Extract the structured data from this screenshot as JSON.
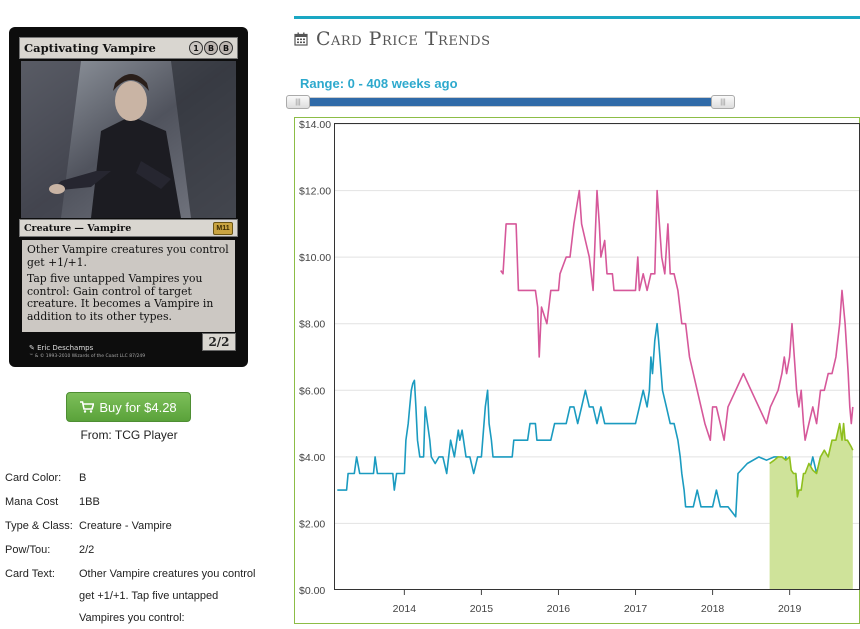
{
  "card": {
    "name": "Captivating Vampire",
    "mana_symbols": [
      "1",
      "B",
      "B"
    ],
    "type_line": "Creature — Vampire",
    "set_symbol": "M11",
    "rules": [
      "Other Vampire creatures you control get +1/+1.",
      "Tap five untapped Vampires you control: Gain control of target creature. It becomes a Vampire in addition to its other types."
    ],
    "pt": "2/2",
    "artist": "Eric Deschamps",
    "copyright": "™ & © 1993-2010 Wizards of the Coast LLC 87/249"
  },
  "buy": {
    "label": "Buy for $4.28",
    "from": "From: TCG Player"
  },
  "details": [
    {
      "label": "Card Color:",
      "value": "B"
    },
    {
      "label": "Mana Cost",
      "value": "1BB"
    },
    {
      "label": "Type & Class:",
      "value": "Creature - Vampire"
    },
    {
      "label": "Pow/Tou:",
      "value": "2/2"
    },
    {
      "label": "Card Text:",
      "value": "Other Vampire creatures you control get +1/+1. Tap five untapped Vampires you control:"
    }
  ],
  "chart_header": {
    "title": "Card Price Trends",
    "range": "Range: 0 - 408 weeks ago"
  },
  "colors": {
    "accent": "#1aa7c3",
    "pink": "#d6589a",
    "blue": "#1b9bc0",
    "green": "#8fbf1e",
    "green_fill": "#cfe39a"
  },
  "chart_data": {
    "type": "line",
    "xlabel": "",
    "ylabel": "",
    "x_ticks": [
      "2014",
      "2015",
      "2016",
      "2017",
      "2018",
      "2019"
    ],
    "y_ticks": [
      "$0.00",
      "$2.00",
      "$4.00",
      "$6.00",
      "$8.00",
      "$10.00",
      "$12.00",
      "$14.00"
    ],
    "xlim": [
      2013.1,
      2019.9
    ],
    "ylim": [
      0,
      14
    ],
    "grid": "horizontal",
    "series": [
      {
        "color": "pink",
        "points": [
          [
            2015.25,
            9.6
          ],
          [
            2015.28,
            9.5
          ],
          [
            2015.32,
            11.0
          ],
          [
            2015.45,
            11.0
          ],
          [
            2015.48,
            9.0
          ],
          [
            2015.7,
            9.0
          ],
          [
            2015.73,
            8.5
          ],
          [
            2015.75,
            7.0
          ],
          [
            2015.78,
            8.5
          ],
          [
            2015.85,
            8.0
          ],
          [
            2015.9,
            9.0
          ],
          [
            2016.0,
            9.0
          ],
          [
            2016.02,
            9.5
          ],
          [
            2016.1,
            10.0
          ],
          [
            2016.15,
            10.0
          ],
          [
            2016.2,
            11.0
          ],
          [
            2016.27,
            12.0
          ],
          [
            2016.3,
            11.0
          ],
          [
            2016.35,
            10.5
          ],
          [
            2016.4,
            10.0
          ],
          [
            2016.45,
            9.0
          ],
          [
            2016.5,
            12.0
          ],
          [
            2016.53,
            11.0
          ],
          [
            2016.55,
            10.0
          ],
          [
            2016.6,
            10.5
          ],
          [
            2016.63,
            9.5
          ],
          [
            2016.7,
            9.5
          ],
          [
            2016.72,
            9.0
          ],
          [
            2016.9,
            9.0
          ],
          [
            2017.0,
            9.0
          ],
          [
            2017.03,
            10.0
          ],
          [
            2017.05,
            9.0
          ],
          [
            2017.1,
            9.5
          ],
          [
            2017.15,
            9.0
          ],
          [
            2017.2,
            9.5
          ],
          [
            2017.25,
            9.5
          ],
          [
            2017.28,
            12.0
          ],
          [
            2017.31,
            11.0
          ],
          [
            2017.34,
            10.0
          ],
          [
            2017.38,
            9.5
          ],
          [
            2017.42,
            11.0
          ],
          [
            2017.45,
            9.5
          ],
          [
            2017.5,
            9.5
          ],
          [
            2017.55,
            9.0
          ],
          [
            2017.6,
            8.0
          ],
          [
            2017.65,
            8.0
          ],
          [
            2017.7,
            7.0
          ],
          [
            2017.8,
            6.0
          ],
          [
            2017.9,
            5.0
          ],
          [
            2017.97,
            4.5
          ],
          [
            2018.0,
            5.5
          ],
          [
            2018.05,
            5.5
          ],
          [
            2018.1,
            5.0
          ],
          [
            2018.15,
            4.5
          ],
          [
            2018.2,
            5.5
          ],
          [
            2018.3,
            6.0
          ],
          [
            2018.4,
            6.5
          ],
          [
            2018.5,
            6.0
          ],
          [
            2018.6,
            5.5
          ],
          [
            2018.7,
            5.0
          ],
          [
            2018.75,
            5.5
          ],
          [
            2018.85,
            6.0
          ],
          [
            2018.9,
            6.5
          ],
          [
            2018.93,
            7.0
          ],
          [
            2018.96,
            6.5
          ],
          [
            2019.0,
            7.0
          ],
          [
            2019.03,
            8.0
          ],
          [
            2019.06,
            7.0
          ],
          [
            2019.09,
            6.0
          ],
          [
            2019.12,
            5.5
          ],
          [
            2019.15,
            6.0
          ],
          [
            2019.18,
            5.0
          ],
          [
            2019.2,
            4.5
          ],
          [
            2019.25,
            5.0
          ],
          [
            2019.3,
            5.5
          ],
          [
            2019.35,
            5.0
          ],
          [
            2019.4,
            6.0
          ],
          [
            2019.45,
            6.0
          ],
          [
            2019.5,
            6.5
          ],
          [
            2019.55,
            6.5
          ],
          [
            2019.6,
            7.0
          ],
          [
            2019.65,
            8.0
          ],
          [
            2019.68,
            9.0
          ],
          [
            2019.72,
            8.0
          ],
          [
            2019.76,
            6.5
          ],
          [
            2019.78,
            5.5
          ],
          [
            2019.8,
            5.0
          ],
          [
            2019.82,
            5.5
          ]
        ]
      },
      {
        "color": "blue",
        "points": [
          [
            2013.13,
            3.0
          ],
          [
            2013.25,
            3.0
          ],
          [
            2013.27,
            3.5
          ],
          [
            2013.35,
            3.5
          ],
          [
            2013.38,
            4.0
          ],
          [
            2013.42,
            3.5
          ],
          [
            2013.6,
            3.5
          ],
          [
            2013.62,
            4.0
          ],
          [
            2013.65,
            3.5
          ],
          [
            2013.85,
            3.5
          ],
          [
            2013.87,
            3.0
          ],
          [
            2013.9,
            3.5
          ],
          [
            2014.0,
            3.5
          ],
          [
            2014.02,
            4.5
          ],
          [
            2014.05,
            5.0
          ],
          [
            2014.07,
            5.5
          ],
          [
            2014.09,
            6.0
          ],
          [
            2014.11,
            6.2
          ],
          [
            2014.13,
            6.3
          ],
          [
            2014.15,
            5.5
          ],
          [
            2014.17,
            4.5
          ],
          [
            2014.2,
            4.0
          ],
          [
            2014.25,
            4.0
          ],
          [
            2014.27,
            5.5
          ],
          [
            2014.3,
            5.0
          ],
          [
            2014.33,
            4.5
          ],
          [
            2014.35,
            4.0
          ],
          [
            2014.4,
            3.8
          ],
          [
            2014.45,
            4.0
          ],
          [
            2014.5,
            4.0
          ],
          [
            2014.55,
            3.5
          ],
          [
            2014.6,
            4.5
          ],
          [
            2014.65,
            4.0
          ],
          [
            2014.7,
            4.8
          ],
          [
            2014.72,
            4.5
          ],
          [
            2014.75,
            4.8
          ],
          [
            2014.8,
            4.0
          ],
          [
            2014.85,
            4.0
          ],
          [
            2014.9,
            3.5
          ],
          [
            2014.95,
            4.0
          ],
          [
            2015.0,
            4.0
          ],
          [
            2015.05,
            5.5
          ],
          [
            2015.08,
            6.0
          ],
          [
            2015.1,
            5.0
          ],
          [
            2015.13,
            4.5
          ],
          [
            2015.15,
            4.0
          ],
          [
            2015.4,
            4.0
          ],
          [
            2015.42,
            4.5
          ],
          [
            2015.5,
            4.5
          ],
          [
            2015.55,
            4.5
          ],
          [
            2015.6,
            4.5
          ],
          [
            2015.63,
            5.0
          ],
          [
            2015.7,
            5.0
          ],
          [
            2015.72,
            4.5
          ],
          [
            2015.9,
            4.5
          ],
          [
            2015.95,
            5.0
          ],
          [
            2016.0,
            5.0
          ],
          [
            2016.1,
            5.0
          ],
          [
            2016.15,
            5.5
          ],
          [
            2016.2,
            5.5
          ],
          [
            2016.25,
            5.0
          ],
          [
            2016.3,
            5.5
          ],
          [
            2016.35,
            6.0
          ],
          [
            2016.4,
            5.5
          ],
          [
            2016.45,
            5.5
          ],
          [
            2016.5,
            5.0
          ],
          [
            2016.55,
            5.5
          ],
          [
            2016.6,
            5.0
          ],
          [
            2016.7,
            5.0
          ],
          [
            2016.8,
            5.0
          ],
          [
            2016.9,
            5.0
          ],
          [
            2017.0,
            5.0
          ],
          [
            2017.05,
            5.5
          ],
          [
            2017.1,
            6.0
          ],
          [
            2017.15,
            5.5
          ],
          [
            2017.18,
            6.0
          ],
          [
            2017.2,
            7.0
          ],
          [
            2017.22,
            6.5
          ],
          [
            2017.25,
            7.5
          ],
          [
            2017.28,
            8.0
          ],
          [
            2017.3,
            7.5
          ],
          [
            2017.35,
            6.0
          ],
          [
            2017.4,
            5.5
          ],
          [
            2017.45,
            5.0
          ],
          [
            2017.5,
            5.0
          ],
          [
            2017.55,
            4.5
          ],
          [
            2017.58,
            4.0
          ],
          [
            2017.6,
            3.5
          ],
          [
            2017.63,
            3.0
          ],
          [
            2017.65,
            2.5
          ],
          [
            2017.75,
            2.5
          ],
          [
            2017.8,
            3.0
          ],
          [
            2017.85,
            2.5
          ],
          [
            2018.0,
            2.5
          ],
          [
            2018.05,
            3.0
          ],
          [
            2018.1,
            2.5
          ],
          [
            2018.2,
            2.5
          ],
          [
            2018.3,
            2.2
          ],
          [
            2018.33,
            3.5
          ],
          [
            2018.45,
            3.8
          ],
          [
            2018.6,
            4.0
          ],
          [
            2018.7,
            3.9
          ],
          [
            2018.8,
            4.0
          ],
          [
            2018.85,
            4.0
          ],
          [
            2018.9,
            3.5
          ],
          [
            2018.95,
            4.0
          ],
          [
            2019.0,
            3.0
          ],
          [
            2019.02,
            3.5
          ],
          [
            2019.05,
            2.5
          ],
          [
            2019.08,
            3.5
          ],
          [
            2019.12,
            2.5
          ],
          [
            2019.15,
            3.0
          ],
          [
            2019.2,
            3.5
          ],
          [
            2019.25,
            3.5
          ],
          [
            2019.3,
            4.0
          ],
          [
            2019.35,
            3.5
          ],
          [
            2019.4,
            4.0
          ],
          [
            2019.5,
            4.0
          ],
          [
            2019.7,
            4.0
          ],
          [
            2019.82,
            4.0
          ]
        ]
      },
      {
        "color": "green",
        "fill": true,
        "points": [
          [
            2018.74,
            3.8
          ],
          [
            2018.8,
            3.9
          ],
          [
            2018.85,
            4.0
          ],
          [
            2018.9,
            4.0
          ],
          [
            2018.95,
            3.9
          ],
          [
            2019.0,
            4.0
          ],
          [
            2019.02,
            3.6
          ],
          [
            2019.05,
            3.5
          ],
          [
            2019.08,
            3.5
          ],
          [
            2019.1,
            2.8
          ],
          [
            2019.12,
            3.0
          ],
          [
            2019.15,
            3.0
          ],
          [
            2019.18,
            3.5
          ],
          [
            2019.2,
            3.5
          ],
          [
            2019.25,
            3.8
          ],
          [
            2019.3,
            3.6
          ],
          [
            2019.35,
            3.5
          ],
          [
            2019.4,
            4.0
          ],
          [
            2019.45,
            4.2
          ],
          [
            2019.5,
            4.0
          ],
          [
            2019.55,
            4.5
          ],
          [
            2019.6,
            4.5
          ],
          [
            2019.65,
            5.0
          ],
          [
            2019.68,
            4.5
          ],
          [
            2019.7,
            5.0
          ],
          [
            2019.72,
            4.5
          ],
          [
            2019.75,
            4.5
          ],
          [
            2019.8,
            4.3
          ],
          [
            2019.82,
            4.2
          ]
        ]
      }
    ]
  }
}
